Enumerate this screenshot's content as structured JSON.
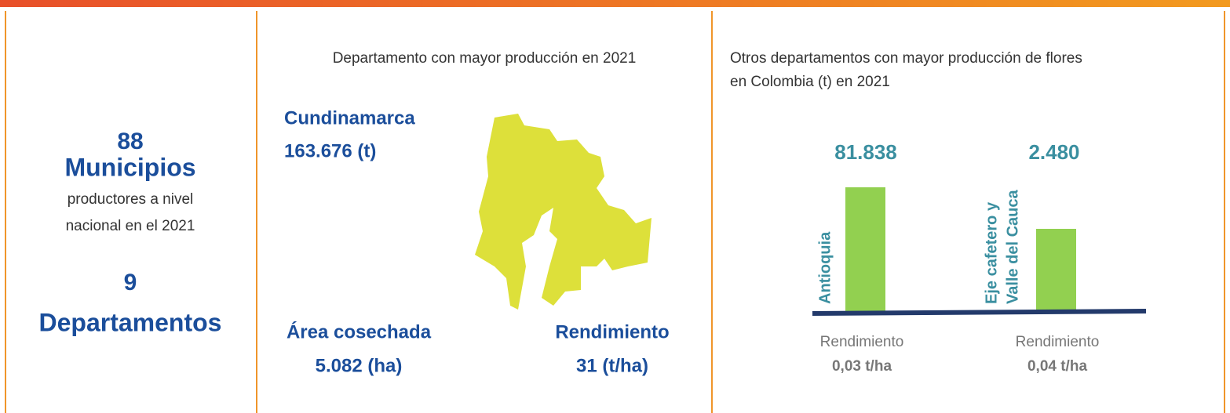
{
  "left": {
    "municipios_count": "88",
    "municipios_label": "Municipios",
    "municipios_desc": [
      "productores a nivel",
      "nacional en el 2021"
    ],
    "departamentos_count": "9",
    "departamentos_label": "Departamentos"
  },
  "middle": {
    "title": "Departamento con mayor producción en 2021",
    "department": "Cundinamarca",
    "production": "163.676 (t)",
    "area_label": "Área cosechada",
    "area_value": "5.082 (ha)",
    "yield_label": "Rendimiento",
    "yield_value": "31 (t/ha)"
  },
  "right": {
    "title": [
      "Otros departamentos con mayor producción de flores",
      "en Colombia (t) en 2021"
    ],
    "items": [
      {
        "value": "81.838",
        "name": [
          "Antioquia"
        ],
        "yield_label": "Rendimiento",
        "yield_value": "0,03 t/ha"
      },
      {
        "value": "2.480",
        "name": [
          "Eje cafetero y",
          "Valle del Cauca"
        ],
        "yield_label": "Rendimiento",
        "yield_value": "0,04 t/ha"
      }
    ]
  }
}
